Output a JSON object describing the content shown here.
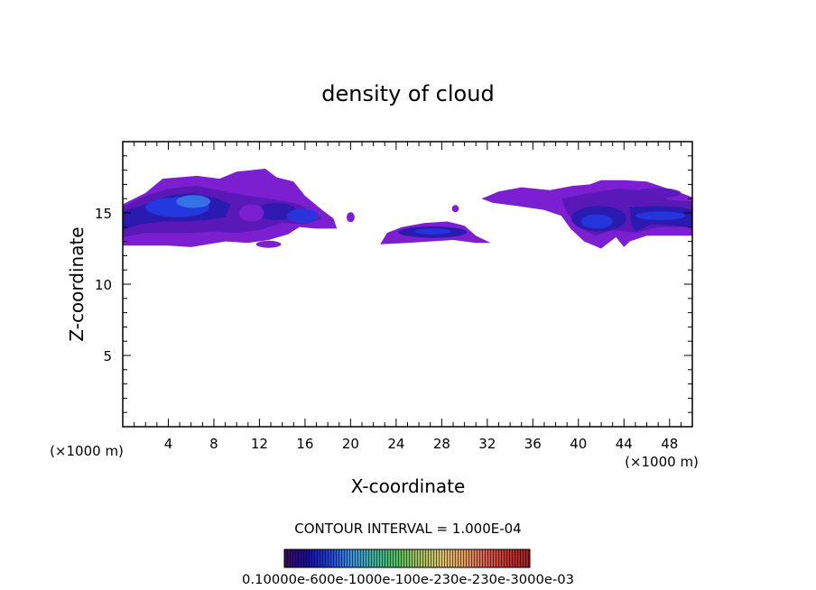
{
  "chart_data": {
    "type": "heatmap",
    "title": "density of cloud",
    "xlabel": "X-coordinate",
    "ylabel": "Z-coordinate",
    "x_unit_label": "(×1000 m)",
    "xlim": [
      0,
      50
    ],
    "ylim": [
      0,
      20
    ],
    "x_ticks": [
      4,
      8,
      12,
      16,
      20,
      24,
      28,
      32,
      36,
      40,
      44,
      48
    ],
    "x_tick_labels": [
      "4",
      "8",
      "12",
      "16",
      "20",
      "24",
      "28",
      "32",
      "36",
      "40",
      "44",
      "48"
    ],
    "y_ticks": [
      5,
      10,
      15
    ],
    "y_tick_labels": [
      "5",
      "10",
      "15"
    ],
    "grid": false,
    "contour_interval_text": "CONTOUR INTERVAL = 1.000E-04",
    "colorbar": {
      "min": 0.0001,
      "max": 0.0016,
      "labels_text": "0.10000e-600e-1000e-100e-230e-230e-3000e-03",
      "colors": [
        "#3b0a5e",
        "#1a0aa0",
        "#1f3fd8",
        "#3f8fe0",
        "#3fb0a0",
        "#4fc060",
        "#a0c060",
        "#d8c070",
        "#e0a060",
        "#d86050",
        "#c03030",
        "#a02020"
      ]
    },
    "regions": [
      {
        "name": "left cloud band",
        "x_range": [
          0,
          20.5
        ],
        "z_range": [
          12.6,
          18.2
        ]
      },
      {
        "name": "central cloud patch",
        "x_range": [
          22.5,
          32.5
        ],
        "z_range": [
          12.7,
          14.5
        ]
      },
      {
        "name": "right cloud band",
        "x_range": [
          31.5,
          50
        ],
        "z_range": [
          12.5,
          17.3
        ]
      }
    ]
  }
}
